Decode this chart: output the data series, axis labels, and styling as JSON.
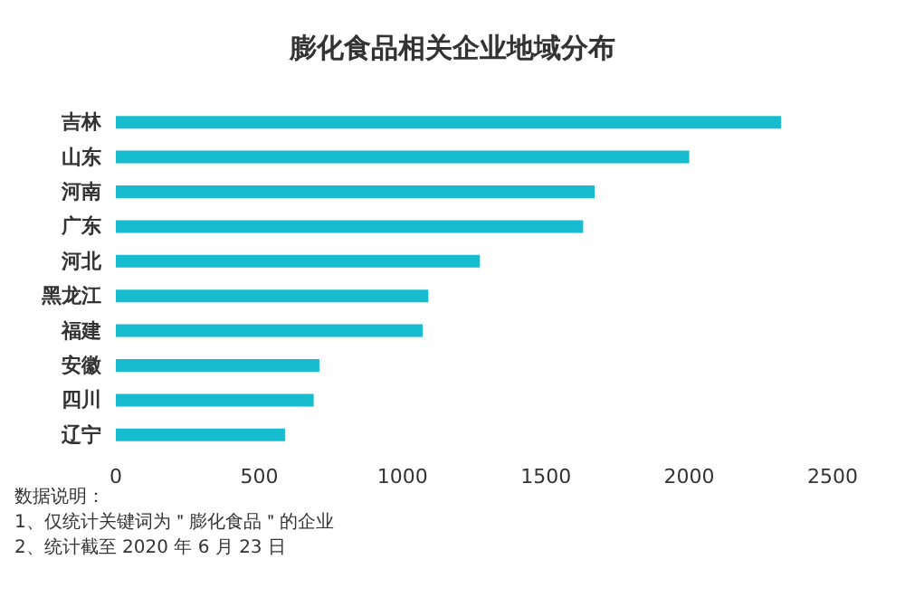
{
  "chart_data": {
    "type": "bar",
    "orientation": "horizontal",
    "title": "膨化食品相关企业地域分布",
    "categories": [
      "吉林",
      "山东",
      "河南",
      "广东",
      "河北",
      "黑龙江",
      "福建",
      "安徽",
      "四川",
      "辽宁"
    ],
    "values": [
      2320,
      2000,
      1670,
      1630,
      1270,
      1090,
      1070,
      710,
      690,
      590
    ],
    "color": "#17bccf",
    "xlim": [
      0,
      2500
    ],
    "xticks": [
      0,
      500,
      1000,
      1500,
      2000,
      2500
    ],
    "grid": false,
    "annotations": [
      "数据说明：",
      "1、仅统计关键词为＂膨化食品＂的企业",
      "2、统计截至 2020 年 6 月 23 日"
    ]
  }
}
